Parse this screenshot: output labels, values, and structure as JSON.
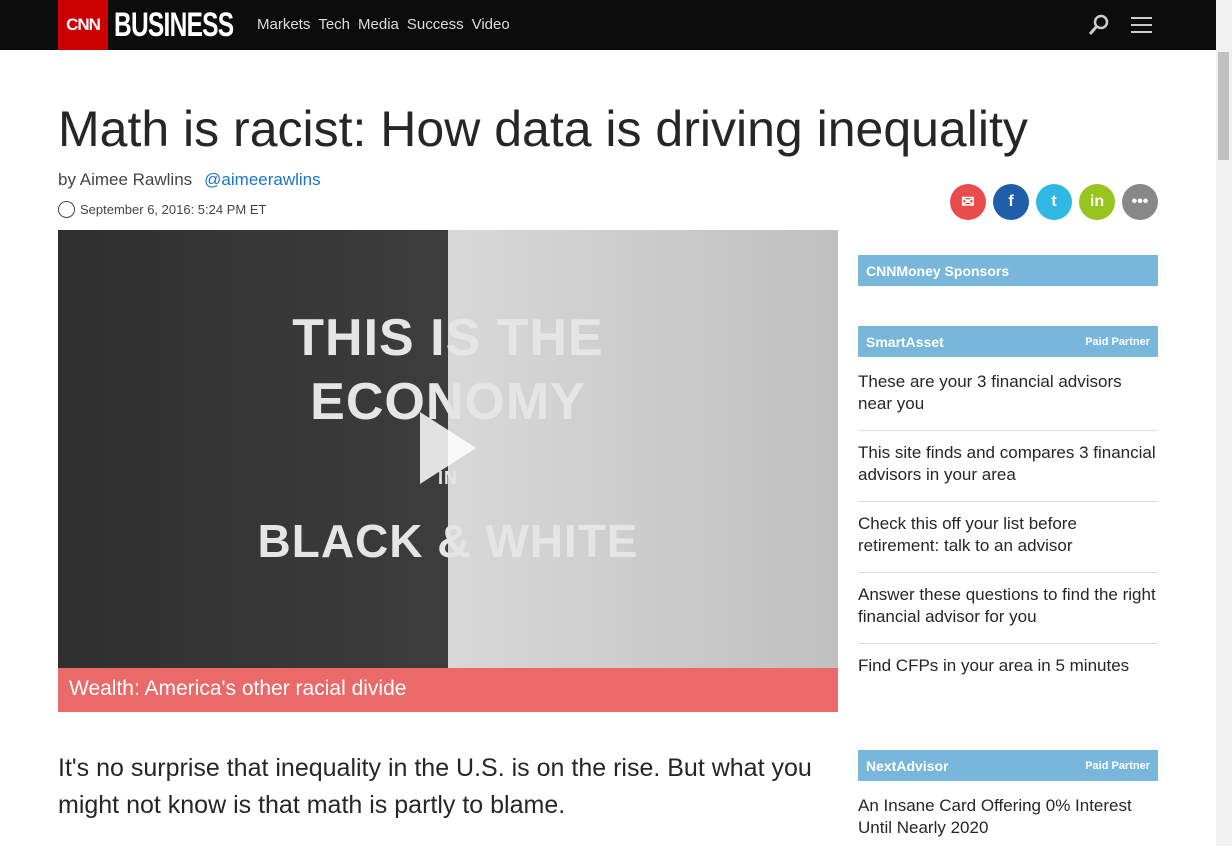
{
  "nav": {
    "logo": "CNN",
    "brand": "BUSINESS",
    "links": [
      "Markets",
      "Tech",
      "Media",
      "Success",
      "Video"
    ]
  },
  "article": {
    "title": "Math is racist: How data is driving inequality",
    "author": "by Aimee Rawlins",
    "handle": "@aimeerawlins",
    "date": "September 6, 2016: 5:24 PM ET",
    "video": {
      "lines": [
        "THIS IS THE",
        "ECONOMY",
        "IN",
        "BLACK & WHITE"
      ],
      "caption": "Wealth: America's other racial divide"
    },
    "lead": "It's no surprise that inequality in the U.S. is on the rise. But what you might not know is that math is partly to blame."
  },
  "share": [
    {
      "icon": "email-icon",
      "glyph": "✉",
      "color": "#e84c4c"
    },
    {
      "icon": "facebook-icon",
      "glyph": "f",
      "color": "#1f5ea8"
    },
    {
      "icon": "twitter-icon",
      "glyph": "t",
      "color": "#31b7e3"
    },
    {
      "icon": "linkedin-icon",
      "glyph": "in",
      "color": "#97c41e"
    },
    {
      "icon": "more-icon",
      "glyph": "•••",
      "color": "#888888"
    }
  ],
  "sidebar": {
    "sponsors": "CNNMoney Sponsors",
    "smartasset": {
      "name": "SmartAsset",
      "tag": "Paid Partner",
      "items": [
        "These are your 3 financial advisors near you",
        "This site finds and compares 3 financial advisors in your area",
        "Check this off your list before retirement: talk to an advisor",
        "Answer these questions to find the right financial advisor for you",
        "Find CFPs in your area in 5 minutes"
      ]
    },
    "nextadvisor": {
      "name": "NextAdvisor",
      "tag": "Paid Partner",
      "items": [
        "An Insane Card Offering 0% Interest Until Nearly 2020"
      ]
    }
  }
}
